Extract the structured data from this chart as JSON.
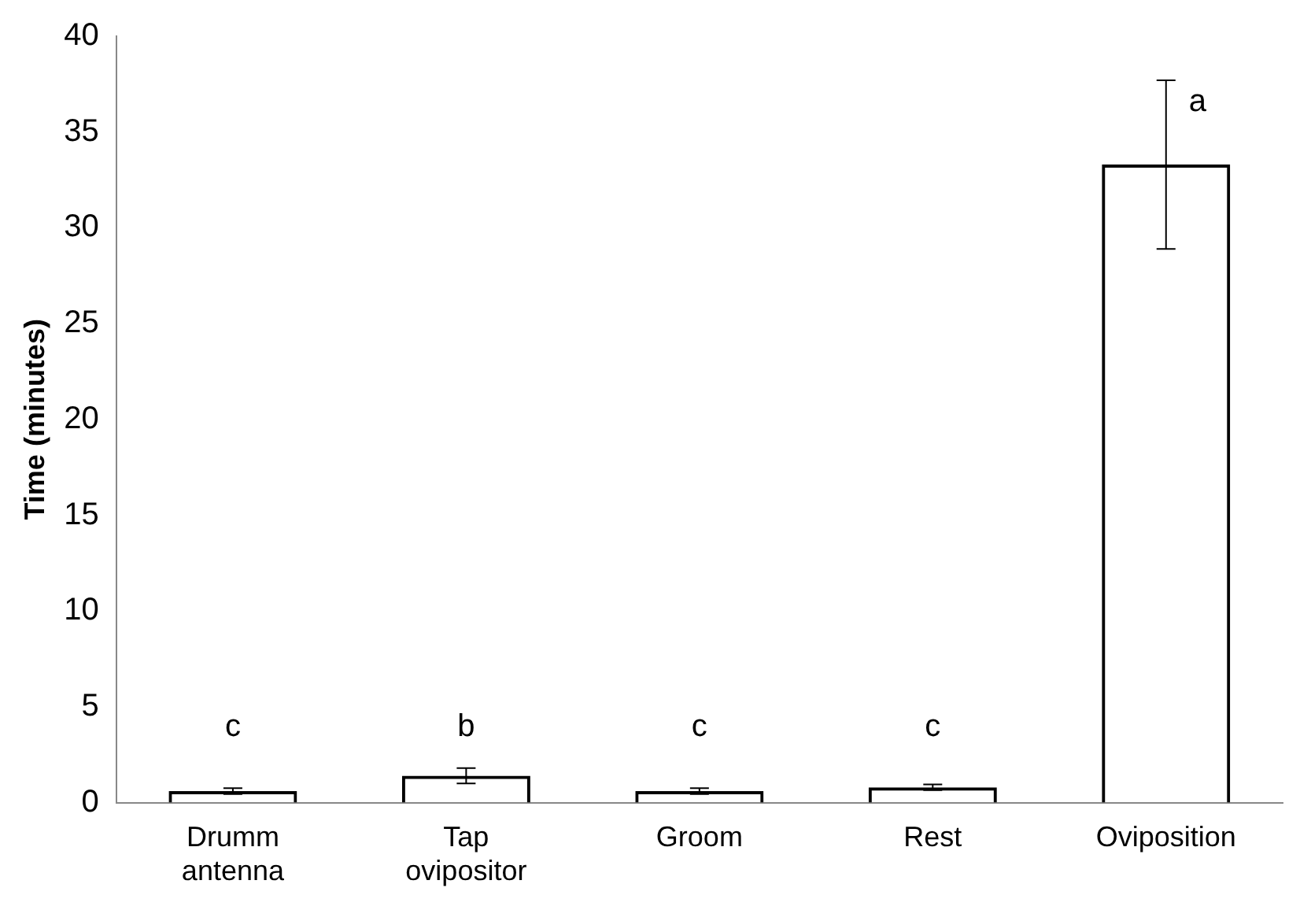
{
  "chart_data": {
    "type": "bar",
    "ylabel": "Time (minutes)",
    "categories": [
      "Drumm antenna",
      "Tap ovipositor",
      "Groom",
      "Rest",
      "Oviposition"
    ],
    "values": [
      0.6,
      1.4,
      0.6,
      0.8,
      33.3
    ],
    "errors": [
      0.15,
      0.4,
      0.15,
      0.15,
      4.4
    ],
    "color": "#000000",
    "ylim": [
      0,
      40
    ],
    "yticks": [
      0,
      5,
      10,
      15,
      20,
      25,
      30,
      35,
      40
    ],
    "grid": false,
    "legend": false,
    "annotations": [
      "c",
      "b",
      "c",
      "c",
      "a"
    ]
  }
}
